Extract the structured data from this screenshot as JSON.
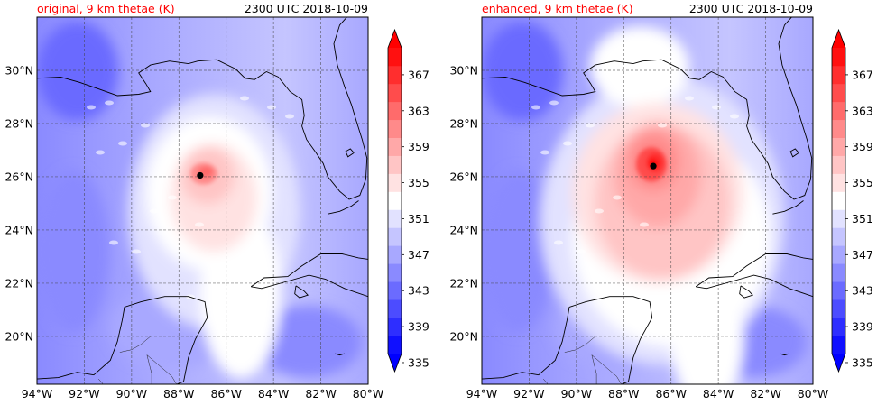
{
  "panels": [
    {
      "title_left": "original, 9 km thetae (K)",
      "title_right": "2300 UTC 2018-10-09",
      "storm_center": {
        "lon": -87.1,
        "lat": 26.05
      },
      "intensity": "weak"
    },
    {
      "title_left": "enhanced, 9 km thetae (K)",
      "title_right": "2300 UTC 2018-10-09",
      "storm_center": {
        "lon": -86.75,
        "lat": 26.4
      },
      "intensity": "strong"
    }
  ],
  "map": {
    "lon_range": [
      -94,
      -80
    ],
    "lat_range": [
      18.2,
      32
    ],
    "lon_ticks": [
      -94,
      -92,
      -90,
      -88,
      -86,
      -84,
      -82,
      -80
    ],
    "lat_ticks": [
      20,
      22,
      24,
      26,
      28,
      30
    ],
    "lon_tick_labels": [
      "94°W",
      "92°W",
      "90°W",
      "88°W",
      "86°W",
      "84°W",
      "82°W",
      "80°W"
    ],
    "lat_tick_labels": [
      "20°N",
      "22°N",
      "24°N",
      "26°N",
      "28°N",
      "30°N"
    ],
    "grid": true
  },
  "colorbar": {
    "levels": [
      335,
      337,
      339,
      341,
      343,
      345,
      347,
      349,
      351,
      353,
      355,
      357,
      359,
      361,
      363,
      365,
      367,
      369
    ],
    "tick_labels": [
      "335",
      "339",
      "343",
      "347",
      "351",
      "355",
      "359",
      "363",
      "367"
    ],
    "extend": "both",
    "colors": [
      "#1010ff",
      "#2e2eff",
      "#4c4cff",
      "#6b6bff",
      "#8a8aff",
      "#a8a8ff",
      "#c5c5ff",
      "#e2e2ff",
      "#ffffff",
      "#ffe2e2",
      "#ffc5c5",
      "#ffa8a8",
      "#ff8a8a",
      "#ff6b6b",
      "#ff4c4c",
      "#ff2e2e",
      "#ff1010"
    ],
    "under_color": "#0000ff",
    "over_color": "#ff0000"
  },
  "title_colors": {
    "left": "#ff0000",
    "right": "#000000"
  }
}
